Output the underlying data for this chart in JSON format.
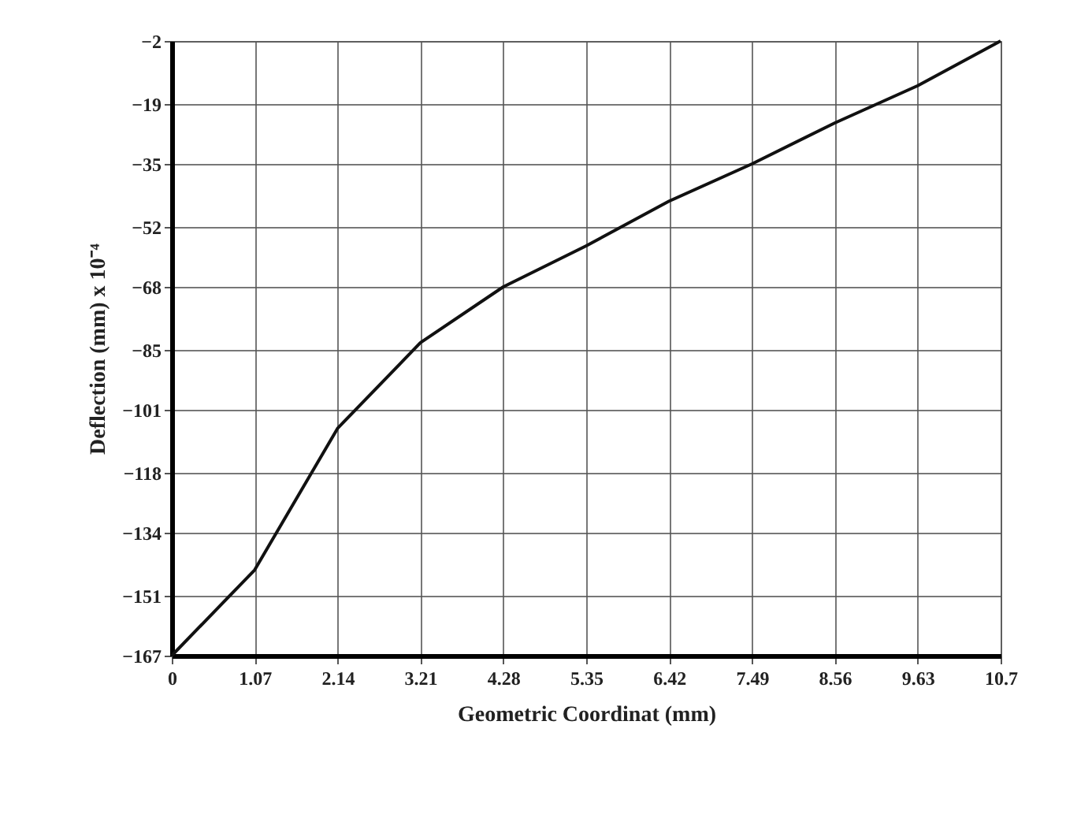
{
  "chart_data": {
    "type": "line",
    "xlabel": "Geometric Coordinat (mm)",
    "ylabel": "Deflection (mm) x 10⁻⁴",
    "x": [
      0,
      1.07,
      2.14,
      3.21,
      4.28,
      5.35,
      6.42,
      7.49,
      8.56,
      9.63,
      10.7
    ],
    "series": [
      {
        "color": "#111111",
        "values": [
          -167,
          -144,
          -106,
          -83,
          -68,
          -57,
          -45,
          -35,
          -24,
          -14,
          -2
        ]
      }
    ],
    "xlim": [
      0,
      10.7
    ],
    "xticks": [
      0,
      1.07,
      2.14,
      3.21,
      4.28,
      5.35,
      6.42,
      7.49,
      8.56,
      9.63,
      10.7
    ],
    "ylim": [
      -167,
      -2
    ],
    "yticks": [
      -167,
      -151,
      -134,
      -118,
      -101,
      -85,
      -68,
      -52,
      -35,
      -19,
      -2
    ],
    "grid": true,
    "marker": "none",
    "line_style": "solid",
    "legend": false
  }
}
